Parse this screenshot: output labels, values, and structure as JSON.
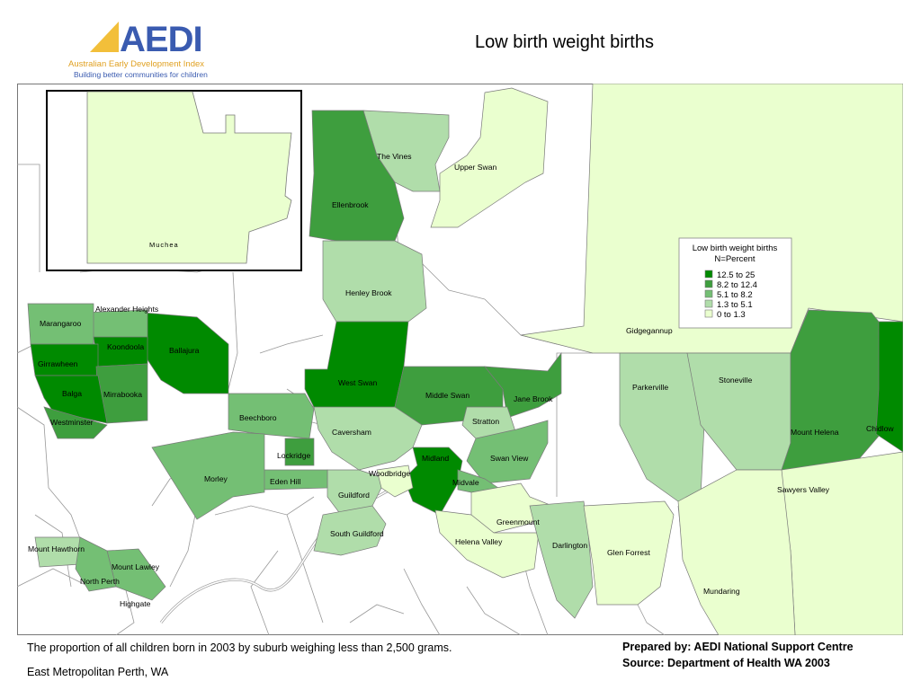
{
  "logo": {
    "wordmark": "AEDI",
    "org_name": "Australian Early Development Index",
    "tagline": "Building better communities for children"
  },
  "title": "Low birth weight births",
  "colors": {
    "class1": "#008a00",
    "class2": "#3e9e3e",
    "class3": "#74bf74",
    "class4": "#b0ddaa",
    "class5": "#eaffcf",
    "nodata": "#ffffff"
  },
  "legend": {
    "title": "Low birth weight births",
    "subtitle": "N=Percent",
    "items": [
      "12.5 to 25",
      "8.2 to 12.4",
      "5.1 to   8.2",
      "1.3 to   5.1",
      "0    to   1.3"
    ]
  },
  "inset": {
    "label": "Muchea"
  },
  "suburbs": {
    "the_vines": "The Vines",
    "upper_swan": "Upper Swan",
    "ellenbrook": "Ellenbrook",
    "henley_brook": "Henley Brook",
    "gidgegannup": "Gidgegannup",
    "alexander_heights": "Alexander Heights",
    "marangaroo": "Marangaroo",
    "koondoola": "Koondoola",
    "ballajura": "Ballajura",
    "girrawheen": "Girrawheen",
    "west_swan": "West Swan",
    "middle_swan": "Middle Swan",
    "jane_brook": "Jane Brook",
    "parkerville": "Parkerville",
    "stoneville": "Stoneville",
    "balga": "Balga",
    "mirrabooka": "Mirrabooka",
    "westminster": "Westminster",
    "beechboro": "Beechboro",
    "stratton": "Stratton",
    "caversham": "Caversham",
    "mount_helena": "Mount Helena",
    "chidlow": "Chidlow",
    "lockridge": "Lockridge",
    "midland": "Midland",
    "swan_view": "Swan View",
    "morley": "Morley",
    "woodbridge": "Woodbridge",
    "eden_hill": "Eden Hill",
    "midvale": "Midvale",
    "sawyers_valley": "Sawyers Valley",
    "guildford": "Guildford",
    "greenmount": "Greenmount",
    "south_guildford": "South Guildford",
    "mount_hawthorn": "Mount Hawthorn",
    "helena_valley": "Helena Valley",
    "darlington": "Darlington",
    "glen_forrest": "Glen Forrest",
    "mount_lawley": "Mount Lawley",
    "north_perth": "North Perth",
    "highgate": "Highgate",
    "mundaring": "Mundaring"
  },
  "footer": {
    "description": "The proportion of all children born in 2003 by suburb weighing less than 2,500 grams.",
    "region": "East Metropolitan Perth, WA",
    "prepared_by": "Prepared by: AEDI National Support Centre",
    "source": "Source: Department of Health WA 2003"
  }
}
